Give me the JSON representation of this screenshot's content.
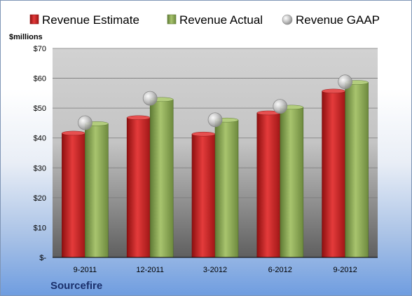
{
  "chart_data": {
    "type": "bar",
    "categories": [
      "9-2011",
      "12-2011",
      "3-2012",
      "6-2012",
      "9-2012"
    ],
    "series": [
      {
        "name": "Revenue Estimate",
        "values": [
          41.6,
          46.8,
          41.3,
          48.4,
          55.7
        ],
        "color": "#cc1f1f"
      },
      {
        "name": "Revenue Actual",
        "values": [
          44.8,
          52.9,
          46.0,
          50.3,
          58.6
        ],
        "color": "#8cac5a"
      },
      {
        "name": "Revenue GAAP",
        "values": [
          45.1,
          53.3,
          46.1,
          50.6,
          58.8
        ],
        "color": "#b8b8b8",
        "marker": "bubble"
      }
    ],
    "ylabel": "$millions",
    "ylim": [
      0,
      70
    ],
    "yticks": [
      "$-",
      "$10",
      "$20",
      "$30",
      "$40",
      "$50",
      "$60",
      "$70"
    ],
    "grid": true,
    "legend_position": "top",
    "company": "Sourcefire"
  }
}
